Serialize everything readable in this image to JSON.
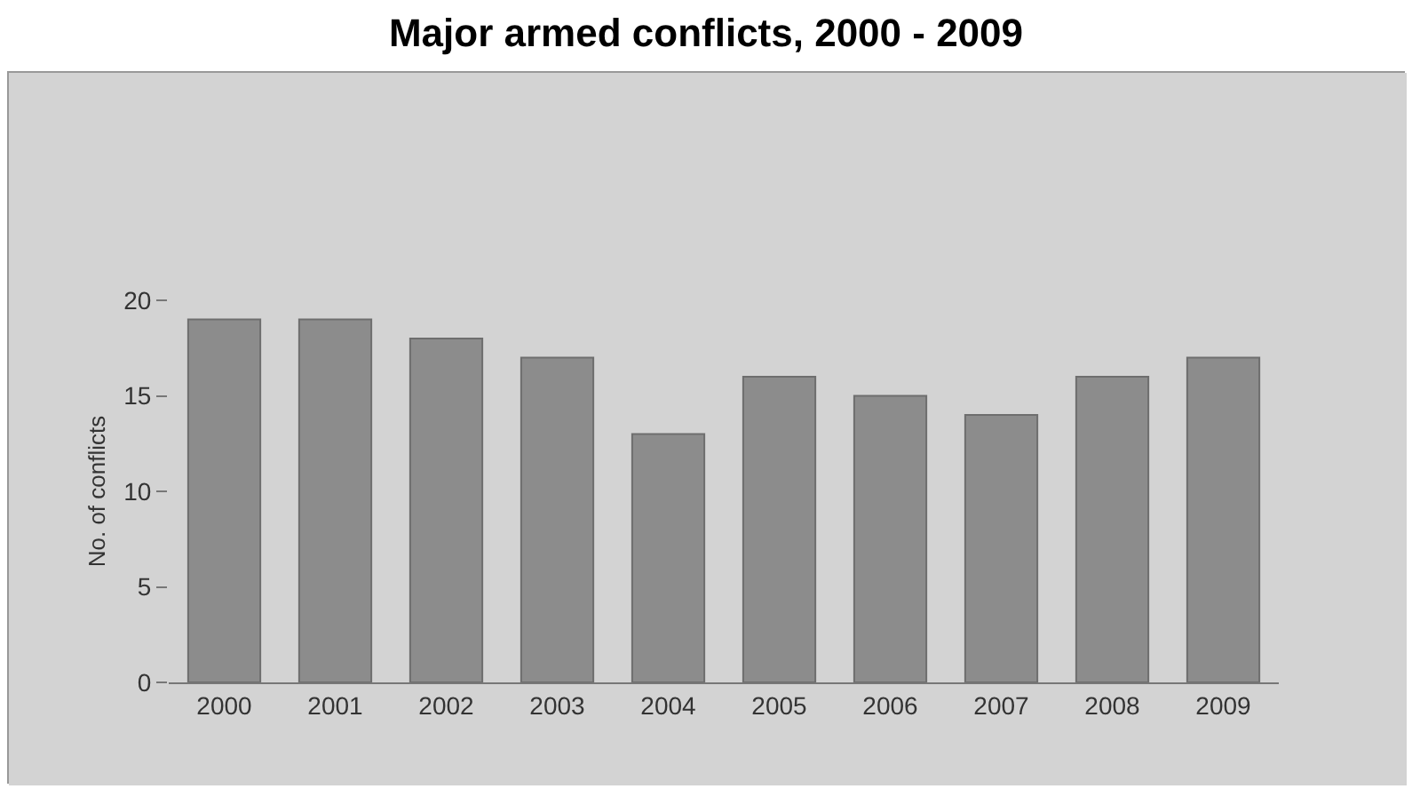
{
  "chart_data": {
    "type": "bar",
    "title": "Major armed conflicts, 2000 - 2009",
    "ylabel": "No. of conflicts",
    "categories": [
      "2000",
      "2001",
      "2002",
      "2003",
      "2004",
      "2005",
      "2006",
      "2007",
      "2008",
      "2009"
    ],
    "values": [
      19,
      19,
      18,
      17,
      13,
      16,
      15,
      14,
      16,
      17
    ],
    "color": "#8c8c8c",
    "ylim": [
      0,
      20
    ],
    "yticks": [
      0,
      5,
      10,
      15,
      20
    ],
    "grid": false,
    "legend": false
  }
}
